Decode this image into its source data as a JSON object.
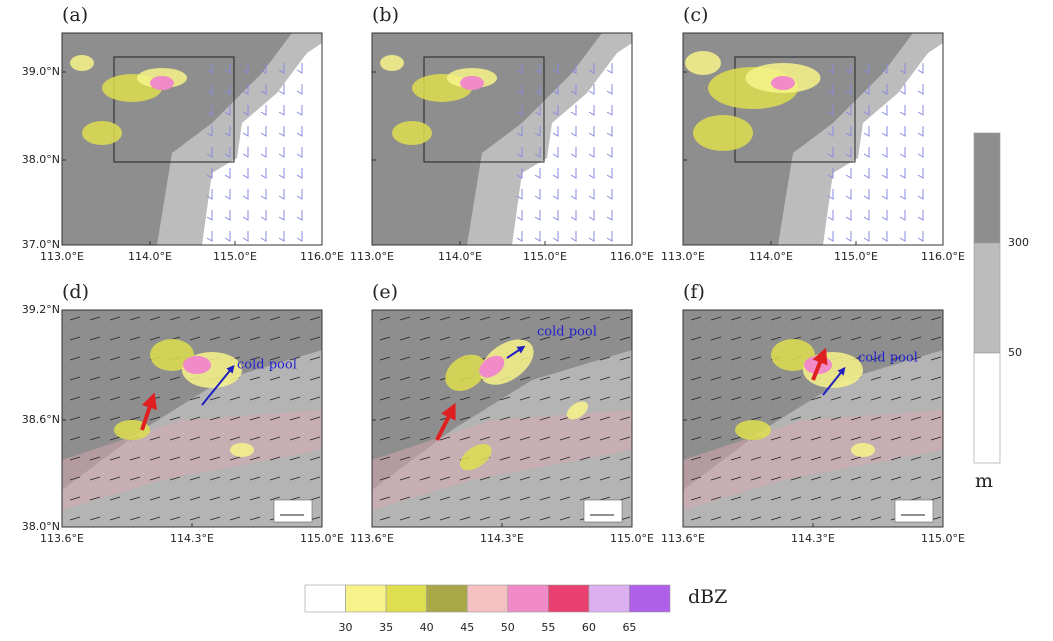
{
  "panels": [
    {
      "label": "(a)"
    },
    {
      "label": "(b)"
    },
    {
      "label": "(c)"
    },
    {
      "label": "(d)"
    },
    {
      "label": "(e)"
    },
    {
      "label": "(f)"
    }
  ],
  "top_axes": {
    "xticks": [
      "113.0°E",
      "114.0°E",
      "115.0°E",
      "116.0°E"
    ],
    "yticks": [
      "39.0°N",
      "38.0°N",
      "37.0°N"
    ]
  },
  "bottom_axes": {
    "xticks": [
      "113.6°E",
      "114.3°E",
      "115.0°E"
    ],
    "yticks": [
      "39.2°N",
      "38.6°N",
      "38.0°N"
    ]
  },
  "annotation": "cold pool",
  "terrain_colorbar": {
    "colors": [
      "#8e8e8e",
      "#bcbcbc",
      "#ffffff"
    ],
    "labels": [
      "300",
      "50"
    ],
    "unit": "m"
  },
  "reflectivity_colorbar": {
    "colors": [
      "#ffffff",
      "#f7f38a",
      "#dede50",
      "#a8a848",
      "#f4c0c0",
      "#f08ac8",
      "#e84070",
      "#dcb0f0",
      "#b060e8"
    ],
    "labels": [
      "30",
      "35",
      "40",
      "45",
      "50",
      "55",
      "60",
      "65"
    ],
    "unit": "dBZ"
  }
}
